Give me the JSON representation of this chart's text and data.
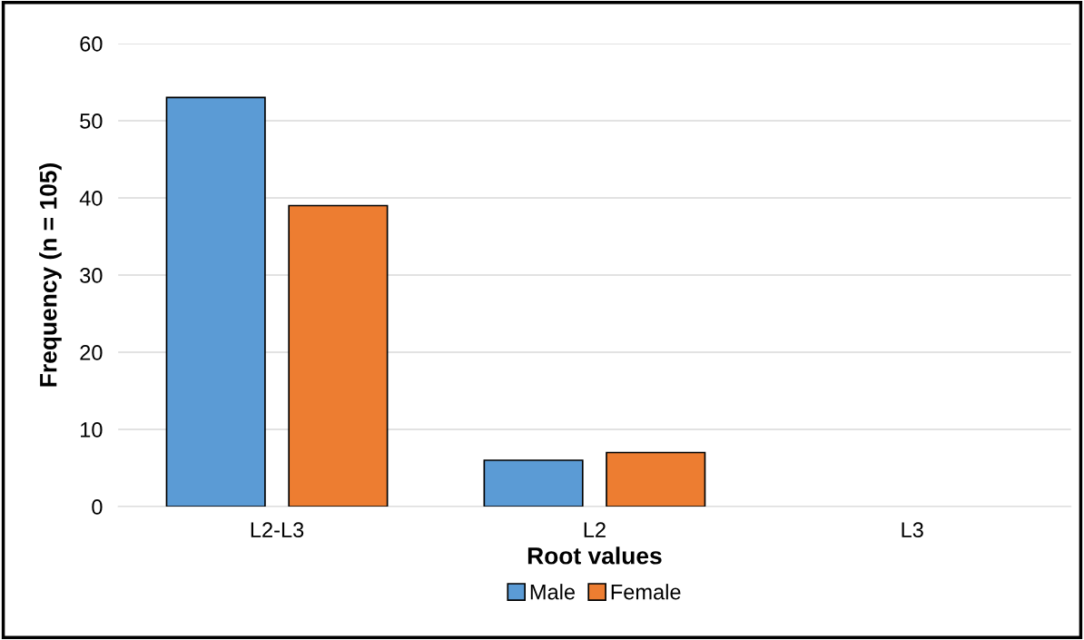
{
  "chart_data": {
    "type": "bar",
    "categories": [
      "L2-L3",
      "L2",
      "L3"
    ],
    "xlabel": "Root values",
    "ylabel": "Frequency (n = 105)",
    "series": [
      {
        "name": "Male",
        "color": "#5b9bd5",
        "values": [
          53,
          6,
          0
        ]
      },
      {
        "name": "Female",
        "color": "#ed7d31",
        "values": [
          39,
          7,
          0
        ]
      }
    ],
    "ylim": [
      0,
      60
    ],
    "yticks": [
      0,
      10,
      20,
      30,
      40,
      50,
      60
    ],
    "grid": "y",
    "legend": "bottom"
  }
}
